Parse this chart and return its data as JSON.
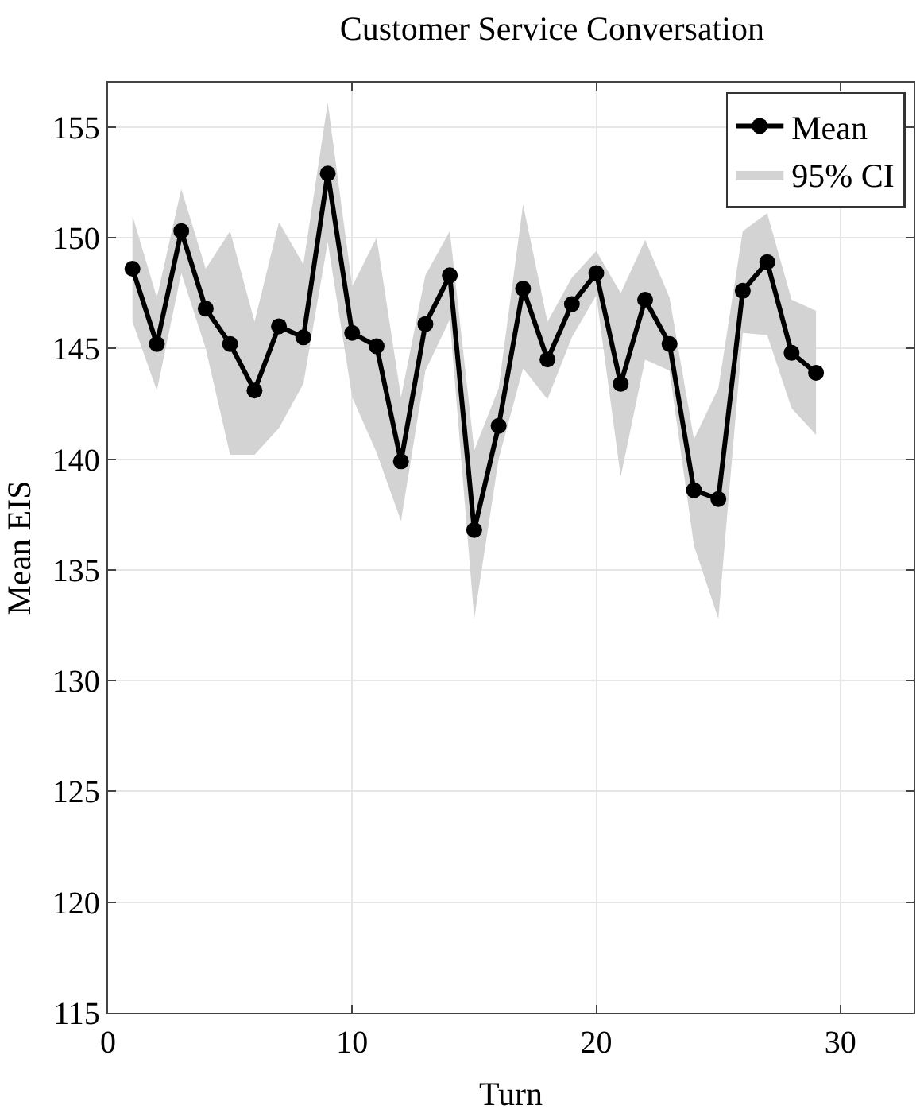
{
  "chart_data": {
    "type": "line",
    "title": "Customer Service Conversation",
    "xlabel": "Turn",
    "ylabel": "Mean EIS",
    "x": [
      1,
      2,
      3,
      4,
      5,
      6,
      7,
      8,
      9,
      10,
      11,
      12,
      13,
      14,
      15,
      16,
      17,
      18,
      19,
      20,
      21,
      22,
      23,
      24,
      25,
      26,
      27,
      28,
      29
    ],
    "series": [
      {
        "name": "Mean",
        "color": "#000000",
        "values": [
          148.6,
          145.2,
          150.3,
          146.8,
          145.2,
          143.1,
          146.0,
          145.5,
          152.9,
          145.7,
          145.1,
          139.9,
          146.1,
          148.3,
          136.8,
          141.5,
          147.7,
          144.5,
          147.0,
          148.4,
          143.4,
          147.2,
          145.2,
          138.6,
          138.2,
          147.6,
          148.9,
          144.8,
          143.9
        ],
        "lower": [
          146.2,
          143.1,
          148.4,
          145.0,
          140.2,
          140.2,
          141.4,
          143.4,
          149.8,
          142.8,
          140.3,
          137.2,
          144.0,
          146.3,
          132.8,
          140.0,
          144.1,
          142.7,
          145.5,
          147.4,
          139.2,
          144.5,
          144.0,
          136.1,
          132.8,
          145.7,
          145.6,
          142.3,
          141.1
        ],
        "upper": [
          151.0,
          147.3,
          152.2,
          148.6,
          150.3,
          146.2,
          150.7,
          148.8,
          156.1,
          147.8,
          150.0,
          142.8,
          148.3,
          150.3,
          140.4,
          143.2,
          151.5,
          146.2,
          148.2,
          149.4,
          147.5,
          149.9,
          147.3,
          140.9,
          143.2,
          150.3,
          151.1,
          147.2,
          146.7
        ]
      },
      {
        "name": "95% CI",
        "type": "area",
        "color": "#d3d3d3",
        "values": [
          null,
          null,
          null,
          null,
          null,
          null,
          null,
          null,
          null,
          null,
          null,
          null,
          null,
          null,
          null,
          null,
          null,
          null,
          null,
          null,
          null,
          null,
          null,
          null,
          null,
          null,
          null,
          null,
          null
        ]
      }
    ],
    "xlim": [
      0,
      33
    ],
    "ylim": [
      115,
      157
    ],
    "xticks": [
      0,
      10,
      20,
      30
    ],
    "yticks": [
      115,
      120,
      125,
      130,
      135,
      140,
      145,
      150,
      155
    ],
    "grid": true,
    "legend": "top right",
    "marker": "circle",
    "line_style": "solid"
  }
}
